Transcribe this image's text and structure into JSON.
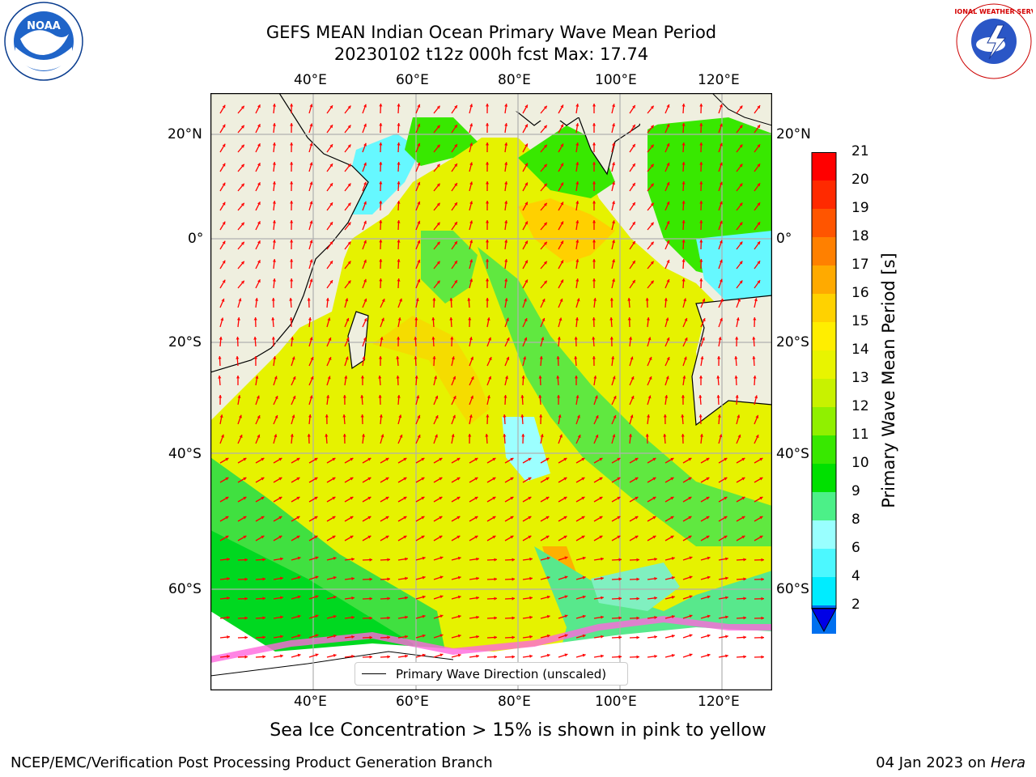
{
  "title_line1": "GEFS MEAN Indian Ocean Primary Wave Mean Period",
  "title_line2": "20230102 t12z 000h fcst   Max: 17.74",
  "lon_ticks": [
    "40°E",
    "60°E",
    "80°E",
    "100°E",
    "120°E"
  ],
  "lat_ticks": [
    "20°N",
    "0°",
    "20°S",
    "40°S",
    "60°S"
  ],
  "legend_label": "Primary Wave Direction (unscaled)",
  "colorbar": {
    "label": "Primary Wave Mean Period [s]",
    "ticks": [
      "21",
      "20",
      "19",
      "18",
      "17",
      "16",
      "15",
      "14",
      "13",
      "12",
      "11",
      "10",
      "9",
      "8",
      "6",
      "4",
      "2"
    ],
    "colors": [
      "#ff0000",
      "#ff2a00",
      "#ff5500",
      "#ff8000",
      "#ffaa00",
      "#ffd200",
      "#ffee00",
      "#e8f400",
      "#c8f200",
      "#90f000",
      "#38e800",
      "#00e000",
      "#4cf088",
      "#99ffff",
      "#4cf8ff",
      "#00ecff",
      "#0070f0"
    ],
    "under_color": "#0000e6"
  },
  "caption": "Sea Ice Concentration > 15% is shown in pink to yellow",
  "footer_left": "NCEP/EMC/Verification Post Processing Product Generation Branch",
  "footer_right_date": "04 Jan 2023 on ",
  "footer_right_machine": "Hera",
  "logos": {
    "noaa": "NOAA",
    "nws": "NATIONAL WEATHER SERVICE"
  },
  "colors": {
    "land": "#efefdf",
    "arrow": "#ff0000",
    "grid": "#b0b0b0"
  }
}
